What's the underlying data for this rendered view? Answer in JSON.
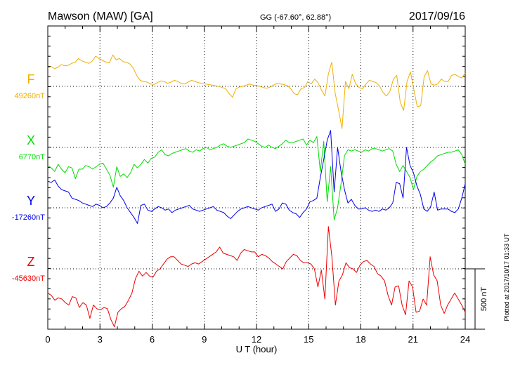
{
  "header": {
    "station": "Mawson (MAW)  [GA]",
    "coords": "GG (-67.60°,  62.88°)",
    "date": "2017/09/16"
  },
  "plotted_note": "Plotted at 2017/10/17 01:33 UT",
  "chart_data": {
    "type": "line",
    "xlabel": "U T (hour)",
    "xlim": [
      0,
      24
    ],
    "xticks": [
      "0",
      "3",
      "6",
      "9",
      "12",
      "15",
      "18",
      "21",
      "24"
    ],
    "scale_bar_label": "500 nT",
    "scale_bar_nT": 500,
    "series": [
      {
        "name": "F",
        "baseline_label": "49260nT",
        "color": "#f0b000",
        "values": [
          150,
          165,
          145,
          160,
          180,
          170,
          175,
          190,
          200,
          230,
          210,
          200,
          190,
          210,
          250,
          230,
          215,
          200,
          195,
          260,
          220,
          230,
          205,
          200,
          185,
          150,
          90,
          50,
          40,
          35,
          20,
          15,
          30,
          45,
          40,
          25,
          35,
          50,
          40,
          25,
          20,
          35,
          50,
          40,
          30,
          25,
          20,
          15,
          10,
          5,
          0,
          -10,
          -20,
          -60,
          -90,
          -20,
          -5,
          0,
          10,
          20,
          10,
          5,
          0,
          -10,
          -15,
          -5,
          10,
          25,
          20,
          15,
          5,
          -20,
          -60,
          -70,
          -20,
          -10,
          40,
          20,
          60,
          30,
          -30,
          -80,
          100,
          200,
          -60,
          -200,
          -350,
          40,
          -20,
          100,
          20,
          -10,
          -20,
          20,
          50,
          40,
          30,
          0,
          -50,
          -80,
          -40,
          60,
          90,
          -130,
          -200,
          40,
          120,
          -30,
          -170,
          -160,
          80,
          130,
          20,
          10,
          20,
          60,
          40,
          40,
          90,
          100,
          80,
          70,
          110
        ]
      },
      {
        "name": "X",
        "baseline_label": "6770nT",
        "color": "#00dd00",
        "values": [
          -150,
          -170,
          -200,
          -140,
          -180,
          -210,
          -160,
          -170,
          -260,
          -180,
          -180,
          -150,
          -160,
          -180,
          -160,
          -140,
          -130,
          -180,
          -230,
          -330,
          -160,
          -240,
          -220,
          -250,
          -210,
          -140,
          -170,
          -140,
          -100,
          -130,
          -90,
          -80,
          -40,
          -20,
          -60,
          -70,
          -50,
          -40,
          -30,
          -20,
          -10,
          -30,
          -40,
          -20,
          -30,
          -10,
          0,
          -20,
          -10,
          0,
          20,
          30,
          10,
          0,
          10,
          20,
          30,
          40,
          70,
          60,
          50,
          30,
          10,
          0,
          20,
          0,
          -10,
          10,
          30,
          60,
          40,
          40,
          50,
          60,
          70,
          20,
          60,
          40,
          90,
          -200,
          50,
          -450,
          -160,
          -600,
          -500,
          -300,
          -70,
          -20,
          -30,
          -20,
          -30,
          -40,
          -20,
          -30,
          -10,
          -10,
          -20,
          -30,
          -20,
          -10,
          -30,
          -140,
          -200,
          -150,
          -200,
          -250,
          -350,
          -240,
          -200,
          -180,
          -150,
          -120,
          -100,
          -70,
          -60,
          -50,
          -40,
          -40,
          -30,
          -20,
          -60,
          -140
        ]
      },
      {
        "name": "Y",
        "baseline_label": "-17260nT",
        "color": "#0000ee",
        "values": [
          220,
          210,
          230,
          180,
          150,
          140,
          130,
          80,
          70,
          60,
          40,
          30,
          20,
          10,
          30,
          20,
          0,
          10,
          40,
          80,
          170,
          100,
          60,
          0,
          -40,
          -80,
          -130,
          20,
          30,
          -20,
          -30,
          -10,
          10,
          0,
          -20,
          -10,
          -40,
          -20,
          -10,
          0,
          10,
          20,
          -10,
          -20,
          -30,
          -20,
          -10,
          0,
          10,
          -20,
          -30,
          -40,
          -70,
          -90,
          -60,
          -30,
          -10,
          0,
          10,
          0,
          -10,
          -20,
          0,
          10,
          20,
          30,
          -30,
          -10,
          40,
          30,
          -20,
          -40,
          -50,
          -80,
          -40,
          -10,
          50,
          60,
          80,
          250,
          400,
          560,
          640,
          130,
          500,
          300,
          150,
          40,
          70,
          20,
          -10,
          -10,
          0,
          -20,
          -30,
          -20,
          -30,
          -10,
          -20,
          0,
          40,
          210,
          200,
          80,
          500,
          350,
          290,
          180,
          110,
          -10,
          -30,
          10,
          130,
          -20,
          -10,
          -10,
          -10,
          -30,
          -40,
          -10,
          80,
          200
        ]
      },
      {
        "name": "Z",
        "baseline_label": "-45630nT",
        "color": "#ee0000",
        "values": [
          -200,
          -220,
          -260,
          -240,
          -250,
          -280,
          -300,
          -230,
          -240,
          -320,
          -280,
          -300,
          -410,
          -300,
          -330,
          -340,
          -320,
          -330,
          -420,
          -480,
          -360,
          -330,
          -310,
          -260,
          -200,
          -80,
          -20,
          -60,
          -30,
          -60,
          -70,
          -20,
          0,
          40,
          80,
          100,
          100,
          70,
          40,
          30,
          20,
          40,
          50,
          40,
          60,
          80,
          100,
          120,
          140,
          180,
          130,
          120,
          110,
          100,
          70,
          130,
          160,
          150,
          140,
          140,
          100,
          120,
          110,
          90,
          60,
          40,
          20,
          0,
          60,
          90,
          120,
          110,
          70,
          50,
          50,
          40,
          0,
          -150,
          -10,
          -250,
          350,
          100,
          -300,
          -100,
          -50,
          50,
          10,
          0,
          -30,
          30,
          60,
          70,
          40,
          20,
          -40,
          -60,
          -100,
          -220,
          -300,
          -150,
          -140,
          -300,
          -380,
          -100,
          -150,
          -360,
          -350,
          -250,
          -300,
          100,
          -50,
          -100,
          -300,
          -370,
          -300,
          -250,
          -200,
          -250,
          -300,
          -360
        ]
      }
    ]
  }
}
